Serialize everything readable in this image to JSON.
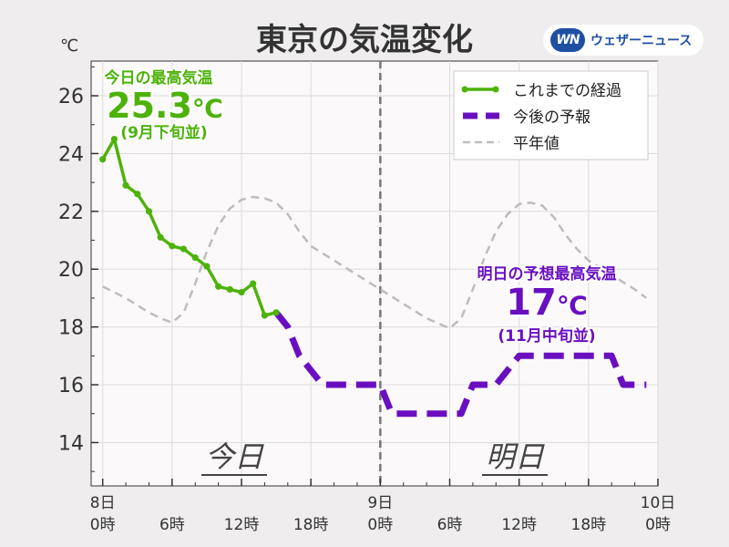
{
  "brand": {
    "badge": "WN",
    "name": "ウェザーニュース"
  },
  "colors": {
    "observed": "#4db20a",
    "forecast": "#6a0fc0",
    "normal": "#bdbdbd",
    "text": "#333333",
    "plot_bg": "#fbf9f9"
  },
  "chart_data": {
    "type": "line",
    "title": "東京の気温変化",
    "ylabel": "℃",
    "ylim": [
      12.5,
      27.2
    ],
    "yticks": [
      14,
      16,
      18,
      20,
      22,
      24,
      26
    ],
    "xlim": [
      -1,
      48
    ],
    "xticks": [
      {
        "h": 0,
        "l1": "8日",
        "l2": "0時"
      },
      {
        "h": 6,
        "l1": "",
        "l2": "6時"
      },
      {
        "h": 12,
        "l1": "",
        "l2": "12時"
      },
      {
        "h": 18,
        "l1": "",
        "l2": "18時"
      },
      {
        "h": 24,
        "l1": "9日",
        "l2": "0時"
      },
      {
        "h": 30,
        "l1": "",
        "l2": "6時"
      },
      {
        "h": 36,
        "l1": "",
        "l2": "12時"
      },
      {
        "h": 42,
        "l1": "",
        "l2": "18時"
      },
      {
        "h": 48,
        "l1": "10日",
        "l2": "0時"
      }
    ],
    "x_axis_unit": "hours since 8日 0時",
    "day_marker_hour": 24,
    "series": [
      {
        "name": "これまでの経過",
        "style": "solid-markers",
        "points": [
          [
            0,
            23.8
          ],
          [
            1,
            24.5
          ],
          [
            2,
            22.9
          ],
          [
            3,
            22.6
          ],
          [
            4,
            22.0
          ],
          [
            5,
            21.1
          ],
          [
            6,
            20.8
          ],
          [
            7,
            20.7
          ],
          [
            8,
            20.4
          ],
          [
            9,
            20.1
          ],
          [
            10,
            19.4
          ],
          [
            11,
            19.3
          ],
          [
            12,
            19.2
          ],
          [
            13,
            19.5
          ],
          [
            14,
            18.4
          ],
          [
            15,
            18.5
          ]
        ]
      },
      {
        "name": "今後の予報",
        "style": "dashed-thick",
        "points": [
          [
            15,
            18.5
          ],
          [
            16,
            18.0
          ],
          [
            17,
            17.0
          ],
          [
            18,
            16.5
          ],
          [
            19,
            16.0
          ],
          [
            20,
            16.0
          ],
          [
            21,
            16.0
          ],
          [
            22,
            16.0
          ],
          [
            23,
            16.0
          ],
          [
            24,
            16.0
          ],
          [
            25,
            15.0
          ],
          [
            26,
            15.0
          ],
          [
            27,
            15.0
          ],
          [
            28,
            15.0
          ],
          [
            29,
            15.0
          ],
          [
            30,
            15.0
          ],
          [
            31,
            15.0
          ],
          [
            32,
            16.0
          ],
          [
            33,
            16.0
          ],
          [
            34,
            16.0
          ],
          [
            35,
            16.5
          ],
          [
            36,
            17.0
          ],
          [
            37,
            17.0
          ],
          [
            38,
            17.0
          ],
          [
            39,
            17.0
          ],
          [
            40,
            17.0
          ],
          [
            41,
            17.0
          ],
          [
            42,
            17.0
          ],
          [
            43,
            17.0
          ],
          [
            44,
            17.0
          ],
          [
            45,
            16.0
          ],
          [
            46,
            16.0
          ],
          [
            47,
            16.0
          ]
        ]
      },
      {
        "name": "平年値",
        "style": "dashed-thin",
        "points": [
          [
            0,
            19.4
          ],
          [
            2,
            19.0
          ],
          [
            4,
            18.5
          ],
          [
            5,
            18.3
          ],
          [
            6,
            18.15
          ],
          [
            7,
            18.5
          ],
          [
            8,
            19.5
          ],
          [
            9,
            20.6
          ],
          [
            10,
            21.5
          ],
          [
            11,
            22.1
          ],
          [
            12,
            22.4
          ],
          [
            13,
            22.5
          ],
          [
            14,
            22.45
          ],
          [
            15,
            22.3
          ],
          [
            16,
            21.9
          ],
          [
            17,
            21.3
          ],
          [
            18,
            20.8
          ],
          [
            20,
            20.3
          ],
          [
            22,
            19.8
          ],
          [
            24,
            19.3
          ],
          [
            26,
            18.8
          ],
          [
            28,
            18.3
          ],
          [
            30,
            17.95
          ],
          [
            31,
            18.3
          ],
          [
            32,
            19.3
          ],
          [
            33,
            20.4
          ],
          [
            34,
            21.3
          ],
          [
            35,
            21.9
          ],
          [
            36,
            22.25
          ],
          [
            37,
            22.3
          ],
          [
            38,
            22.2
          ],
          [
            39,
            21.8
          ],
          [
            40,
            21.2
          ],
          [
            41,
            20.7
          ],
          [
            42,
            20.3
          ],
          [
            44,
            19.8
          ],
          [
            46,
            19.3
          ],
          [
            47,
            19.0
          ]
        ]
      }
    ],
    "legend": {
      "position": "top-right",
      "entries": [
        "これまでの経過",
        "今後の予報",
        "平年値"
      ]
    },
    "annotations": {
      "today_max": {
        "title": "今日の最高気温",
        "value": "25.3",
        "unit": "℃",
        "note": "(9月下旬並)"
      },
      "tomorrow_max": {
        "title": "明日の予想最高気温",
        "value": "17",
        "unit": "℃",
        "note": "(11月中旬並)"
      },
      "today_label": "今日",
      "tomorrow_label": "明日"
    },
    "grid": true
  }
}
